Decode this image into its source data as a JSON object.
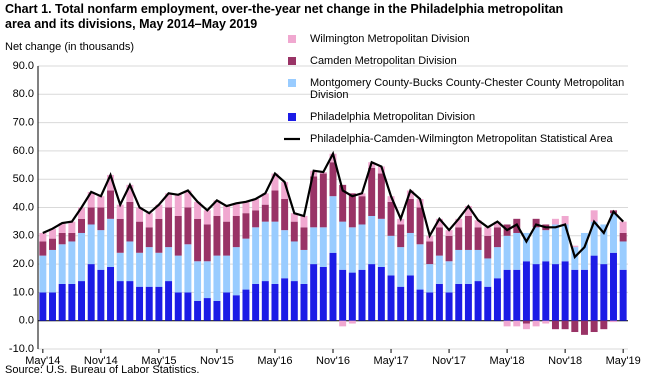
{
  "chart_data": {
    "type": "bar",
    "stacked": true,
    "title": "Chart 1. Total nonfarm employment, over-the-year net change in the Philadelphia metropolitan area and its divisions, May 2014–May 2019",
    "y_label": "Net change (in thousands)",
    "source": "Source: U.S. Bureau of Labor Statistics.",
    "categories": [
      "May'14",
      null,
      null,
      null,
      null,
      null,
      "Nov'14",
      null,
      null,
      null,
      null,
      null,
      "May'15",
      null,
      null,
      null,
      null,
      null,
      "Nov'15",
      null,
      null,
      null,
      null,
      null,
      "May'16",
      null,
      null,
      null,
      null,
      null,
      "Nov'16",
      null,
      null,
      null,
      null,
      null,
      "May'17",
      null,
      null,
      null,
      null,
      null,
      "Nov'17",
      null,
      null,
      null,
      null,
      null,
      "May'18",
      null,
      null,
      null,
      null,
      null,
      "Nov'18",
      null,
      null,
      null,
      null,
      null,
      "May'19"
    ],
    "ylim": [
      -10,
      90
    ],
    "yticks": [
      {
        "value": -10,
        "label": "-10.0"
      },
      {
        "value": 0,
        "label": "0.0"
      },
      {
        "value": 10,
        "label": "10.0"
      },
      {
        "value": 20,
        "label": "20.0"
      },
      {
        "value": 30,
        "label": "30.0"
      },
      {
        "value": 40,
        "label": "40.0"
      },
      {
        "value": 50,
        "label": "50.0"
      },
      {
        "value": 60,
        "label": "60.0"
      },
      {
        "value": 70,
        "label": "70.0"
      },
      {
        "value": 80,
        "label": "80.0"
      },
      {
        "value": 90,
        "label": "90.0"
      }
    ],
    "grid": true,
    "series": [
      {
        "name": "Philadelphia Metropolitan Division",
        "color": "#1c1ce6",
        "values": [
          10,
          10,
          13,
          13,
          14,
          20,
          18,
          19,
          14,
          14,
          12,
          12,
          12,
          14,
          10,
          10,
          7,
          8,
          7,
          10,
          9,
          11,
          13,
          14,
          13,
          15,
          14,
          13,
          20,
          19,
          24,
          18,
          17,
          18,
          20,
          19,
          16,
          12,
          16,
          11,
          10,
          13,
          10,
          13,
          13,
          14,
          12,
          15,
          18,
          18,
          21,
          20,
          21,
          20,
          21,
          18,
          18,
          23,
          20,
          24,
          18
        ]
      },
      {
        "name": "Montgomery County-Bucks County-Chester County Metropolitan Division",
        "color": "#99ccff",
        "values": [
          13,
          15,
          14,
          15,
          17,
          14,
          14,
          17,
          10,
          14,
          12,
          14,
          12,
          12,
          13,
          17,
          14,
          13,
          16,
          13,
          17,
          18,
          20,
          21,
          22,
          17,
          14,
          12,
          13,
          14,
          20,
          17,
          16,
          16,
          17,
          17,
          14,
          14,
          15,
          16,
          10,
          10,
          11,
          12,
          12,
          11,
          10,
          11,
          12,
          13,
          10,
          13,
          11,
          14,
          13,
          8,
          13,
          12,
          14,
          14,
          10
        ]
      },
      {
        "name": "Camden Metropolitan Division",
        "color": "#993366",
        "values": [
          5,
          4,
          4,
          3,
          5,
          6,
          8,
          10,
          12,
          14,
          11,
          7,
          12,
          14,
          14,
          13,
          15,
          13,
          14,
          12,
          11,
          9,
          6,
          6,
          11,
          11,
          7,
          8,
          18,
          19,
          12,
          13,
          12,
          10,
          17,
          16,
          12,
          8,
          12,
          13,
          8,
          10,
          9,
          8,
          12,
          8,
          8,
          7,
          4,
          5,
          -1,
          3,
          2,
          -3,
          -3,
          -4,
          -5,
          -4,
          -3,
          1,
          3
        ]
      },
      {
        "name": "Wilmington Metropolitan Division",
        "color": "#f0a8d0",
        "values": [
          3,
          3.5,
          3.5,
          4,
          4,
          5.5,
          4,
          5.5,
          5,
          6,
          5,
          5,
          5,
          5,
          7.5,
          6,
          6,
          5,
          5.5,
          5.5,
          4.5,
          4,
          4,
          4,
          6,
          6,
          3,
          4,
          2,
          0.5,
          3,
          -2,
          -1,
          1,
          2,
          2.5,
          2,
          2,
          3,
          3,
          2,
          3,
          2,
          3,
          3.5,
          2.5,
          3,
          2,
          -2,
          -2,
          -2,
          -2,
          -1,
          2,
          3,
          0.5,
          0,
          4,
          0,
          -0.5,
          4
        ]
      },
      {
        "name": "Philadelphia-Camden-Wilmington Metropolitan Statistical Area",
        "type": "line",
        "color": "#000000",
        "values": [
          31,
          32.5,
          34.5,
          35,
          40,
          45.5,
          44,
          51.5,
          41,
          48,
          40,
          38,
          41,
          45,
          44.5,
          46,
          42,
          39,
          42.5,
          40.5,
          41.5,
          42,
          43,
          45,
          52,
          49,
          38,
          37,
          53,
          52.5,
          59,
          46,
          44,
          45,
          56,
          54.5,
          44,
          36,
          46,
          43,
          30,
          36,
          32,
          36,
          40.5,
          35.5,
          33,
          35,
          32,
          34,
          28,
          34,
          33,
          33,
          34,
          22.5,
          26,
          35,
          31,
          38.5,
          35
        ]
      }
    ]
  }
}
